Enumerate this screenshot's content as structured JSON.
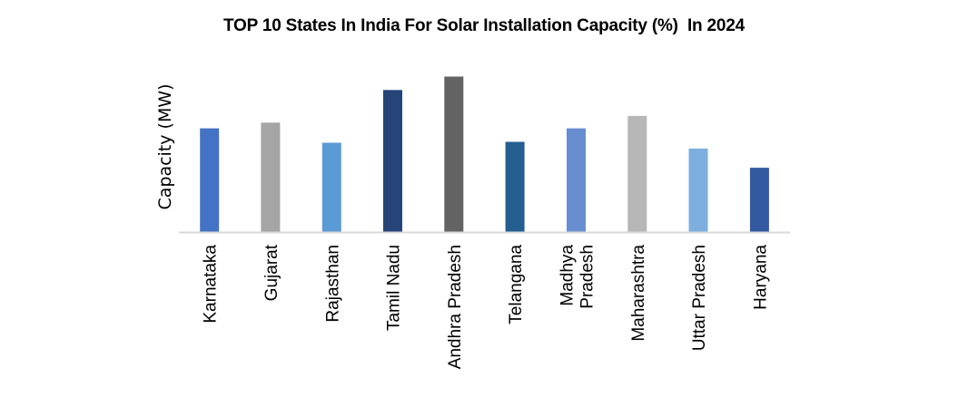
{
  "chart_data": {
    "type": "bar",
    "title": "TOP 10 States In India For Solar Installation Capacity (%)  In 2024",
    "xlabel": "",
    "ylabel": "Capacity (MW)",
    "categories": [
      "Karnataka",
      "Gujarat",
      "Rajasthan",
      "Tamil Nadu",
      "Andhra Pradesh",
      "Telangana",
      "Madhya Pradesh",
      "Maharashtra",
      "Uttar Pradesh",
      "Haryana"
    ],
    "category_lines": [
      [
        "Karnataka"
      ],
      [
        "Gujarat"
      ],
      [
        "Rajasthan"
      ],
      [
        "Tamil Nadu"
      ],
      [
        "Andhra Pradesh"
      ],
      [
        "Telangana"
      ],
      [
        "Madhya",
        "Pradesh"
      ],
      [
        "Maharashtra"
      ],
      [
        "Uttar Pradesh"
      ],
      [
        "Haryana"
      ]
    ],
    "values": [
      10.8,
      11.4,
      9.3,
      14.8,
      16.2,
      9.4,
      10.8,
      12.1,
      8.7,
      6.7
    ],
    "colors": [
      "#4472C4",
      "#A5A5A5",
      "#5B9BD5",
      "#264478",
      "#636363",
      "#255E91",
      "#698ED0",
      "#B7B7B7",
      "#7CAFDD",
      "#335AA1"
    ],
    "ylim": [
      0,
      17
    ],
    "grid": false,
    "legend": "none",
    "axis_color": "#D9D9D9"
  }
}
